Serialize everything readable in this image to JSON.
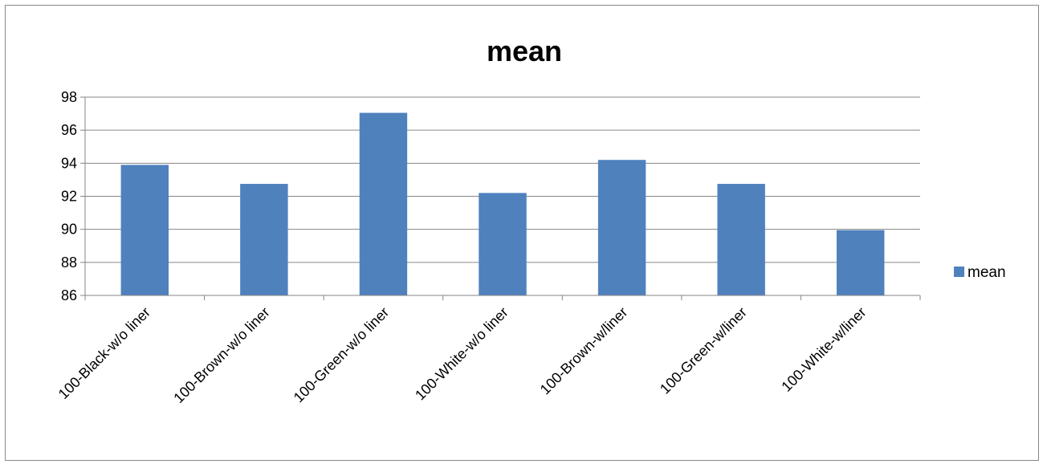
{
  "chart_data": {
    "type": "bar",
    "title": "mean",
    "xlabel": "",
    "ylabel": "",
    "categories": [
      "100-Black-w/o liner",
      "100-Brown-w/o liner",
      "100-Green-w/o liner",
      "100-White-w/o liner",
      "100-Brown-w/liner",
      "100-Green-w/liner",
      "100-White-w/liner"
    ],
    "series": [
      {
        "name": "mean",
        "color": "#4F81BD",
        "values": [
          93.9,
          92.75,
          97.05,
          92.2,
          94.2,
          92.75,
          89.95
        ]
      }
    ],
    "ylim": [
      86,
      98
    ],
    "yticks": [
      "86",
      "88",
      "90",
      "92",
      "94",
      "96",
      "98"
    ],
    "grid": true,
    "legend_position": "right",
    "colors": {
      "bar": "#4F81BD",
      "grid": "#868686",
      "axis": "#868686"
    }
  }
}
